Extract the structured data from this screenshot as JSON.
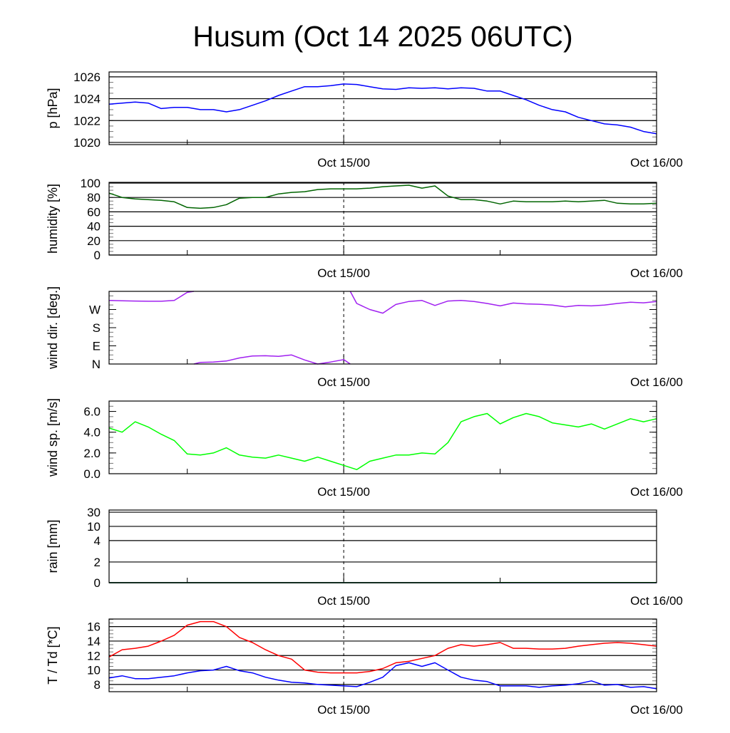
{
  "chart_data": {
    "type": "line",
    "title": "Husum (Oct 14 2025 06UTC)",
    "x": {
      "unit": "hours since Oct 14 06UTC",
      "range": [
        0,
        42
      ],
      "tick_labels": [
        {
          "hour": 18,
          "label": "Oct 15/00"
        },
        {
          "hour": 42,
          "label": "Oct 16/00"
        }
      ],
      "minor_ticks": [
        6,
        30
      ],
      "dashed_marker_hour": 18
    },
    "panels": [
      {
        "id": "pressure",
        "ylabel": "p [hPa]",
        "ylim": [
          1019.8,
          1026.45
        ],
        "yticks": [
          {
            "v": 1020,
            "label": "1020"
          },
          {
            "v": 1022,
            "label": "1022"
          },
          {
            "v": 1024,
            "label": "1024"
          },
          {
            "v": 1026,
            "label": "1026"
          }
        ],
        "grid": true,
        "series": [
          {
            "name": "pressure",
            "color": "#0000ff",
            "values": [
              1023.5,
              1023.6,
              1023.7,
              1023.6,
              1023.1,
              1023.2,
              1023.2,
              1023.0,
              1023.0,
              1022.8,
              1023.0,
              1023.4,
              1023.8,
              1024.3,
              1024.7,
              1025.1,
              1025.1,
              1025.2,
              1025.35,
              1025.3,
              1025.1,
              1024.9,
              1024.85,
              1025.0,
              1024.95,
              1025.0,
              1024.9,
              1025.0,
              1024.95,
              1024.7,
              1024.7,
              1024.3,
              1023.9,
              1023.4,
              1023.0,
              1022.8,
              1022.3,
              1022.0,
              1021.7,
              1021.6,
              1021.4,
              1021.0,
              1020.8
            ]
          }
        ]
      },
      {
        "id": "humidity",
        "ylabel": "humidity [%]",
        "ylim": [
          0,
          101
        ],
        "yticks": [
          {
            "v": 0,
            "label": "0"
          },
          {
            "v": 20,
            "label": "20"
          },
          {
            "v": 40,
            "label": "40"
          },
          {
            "v": 60,
            "label": "60"
          },
          {
            "v": 80,
            "label": "80"
          },
          {
            "v": 100,
            "label": "100"
          }
        ],
        "grid": true,
        "series": [
          {
            "name": "humidity",
            "color": "#006400",
            "values": [
              86,
              80,
              78,
              77,
              76,
              74,
              66,
              65,
              66,
              70,
              79,
              80,
              80,
              85,
              87,
              88,
              91,
              92,
              92,
              92,
              93,
              95,
              96,
              97,
              93,
              96,
              82,
              77,
              77,
              75,
              71,
              75,
              74,
              74,
              74,
              75,
              74,
              75,
              76,
              72,
              71,
              71,
              72
            ]
          }
        ]
      },
      {
        "id": "wind_dir",
        "ylabel": "wind dir. [deg.]",
        "ylim": [
          0,
          360
        ],
        "yticks": [
          {
            "v": 0,
            "label": "N"
          },
          {
            "v": 90,
            "label": "E"
          },
          {
            "v": 180,
            "label": "S"
          },
          {
            "v": 270,
            "label": "W"
          }
        ],
        "grid": false,
        "wrap": true,
        "series": [
          {
            "name": "wind direction",
            "color": "#a020f0",
            "values": [
              315,
              313,
              312,
              311,
              311,
              315,
              355,
              8,
              10,
              15,
              30,
              40,
              41,
              38,
              45,
              20,
              0,
              10,
              22,
              300,
              270,
              252,
              295,
              310,
              315,
              290,
              312,
              315,
              310,
              300,
              288,
              302,
              298,
              296,
              292,
              283,
              290,
              288,
              292,
              300,
              306,
              303,
              310
            ]
          }
        ]
      },
      {
        "id": "wind_speed",
        "ylabel": "wind sp. [m/s]",
        "ylim": [
          0,
          7.0
        ],
        "yticks": [
          {
            "v": 0,
            "label": "0.0"
          },
          {
            "v": 2,
            "label": "2.0"
          },
          {
            "v": 4,
            "label": "4.0"
          },
          {
            "v": 6,
            "label": "6.0"
          }
        ],
        "grid": false,
        "series": [
          {
            "name": "wind speed",
            "color": "#00ff00",
            "values": [
              4.4,
              4.0,
              5.0,
              4.5,
              3.8,
              3.2,
              1.9,
              1.8,
              2.0,
              2.5,
              1.8,
              1.6,
              1.5,
              1.8,
              1.5,
              1.2,
              1.6,
              1.2,
              0.8,
              0.4,
              1.2,
              1.5,
              1.8,
              1.8,
              2.0,
              1.9,
              3.0,
              5.0,
              5.5,
              5.8,
              4.8,
              5.4,
              5.8,
              5.5,
              4.9,
              4.7,
              4.5,
              4.8,
              4.3,
              4.8,
              5.3,
              5.0,
              5.3
            ]
          }
        ]
      },
      {
        "id": "rain",
        "ylabel": "rain [mm]",
        "ylim": [
          0,
          30
        ],
        "scale": "nonlinear",
        "yticks": [
          {
            "v": 0,
            "label": "0"
          },
          {
            "v": 2,
            "label": "2"
          },
          {
            "v": 4,
            "label": "4"
          },
          {
            "v": 10,
            "label": "10"
          },
          {
            "v": 30,
            "label": "30"
          }
        ],
        "grid": true,
        "series": [
          {
            "name": "rain",
            "color": "#00008b",
            "values": [
              0,
              0,
              0,
              0,
              0,
              0,
              0,
              0,
              0,
              0,
              0,
              0,
              0,
              0,
              0,
              0,
              0,
              0,
              0,
              0,
              0,
              0,
              0,
              0,
              0,
              0,
              0,
              0,
              0,
              0,
              0,
              0,
              0,
              0,
              0,
              0,
              0,
              0,
              0,
              0,
              0,
              0,
              0
            ]
          },
          {
            "name": "rain accumulated",
            "color": "#008000",
            "values": [
              0,
              0,
              0,
              0,
              0,
              0,
              0,
              0,
              0,
              0,
              0,
              0,
              0,
              0,
              0,
              0,
              0,
              0,
              0,
              0,
              0,
              0,
              0,
              0,
              0,
              0,
              0,
              0,
              0,
              0,
              0.02,
              0.02,
              0.02,
              0.02,
              0.02,
              0.02,
              0.02,
              0.02,
              0.02,
              0.02,
              0.02,
              0.02,
              0.02
            ]
          }
        ]
      },
      {
        "id": "temperature",
        "ylabel": "T / Td [*C]",
        "ylim": [
          7.0,
          17.05
        ],
        "yticks": [
          {
            "v": 8,
            "label": "8"
          },
          {
            "v": 10,
            "label": "10"
          },
          {
            "v": 12,
            "label": "12"
          },
          {
            "v": 14,
            "label": "14"
          },
          {
            "v": 16,
            "label": "16"
          }
        ],
        "grid": true,
        "series": [
          {
            "name": "T",
            "color": "#ff0000",
            "values": [
              11.8,
              12.8,
              13.0,
              13.3,
              14.0,
              14.8,
              16.2,
              16.7,
              16.7,
              16.0,
              14.5,
              13.8,
              12.8,
              12.0,
              11.5,
              10.0,
              9.7,
              9.6,
              9.6,
              9.6,
              9.8,
              10.2,
              11.0,
              11.2,
              11.6,
              12.0,
              13.0,
              13.5,
              13.3,
              13.5,
              13.8,
              13.0,
              13.0,
              12.9,
              12.9,
              13.0,
              13.3,
              13.5,
              13.7,
              13.8,
              13.7,
              13.5,
              13.3
            ]
          },
          {
            "name": "Td",
            "color": "#0000ff",
            "values": [
              8.9,
              9.2,
              8.8,
              8.8,
              9.0,
              9.2,
              9.6,
              9.9,
              10.0,
              10.5,
              9.9,
              9.6,
              9.0,
              8.6,
              8.3,
              8.2,
              8.0,
              7.9,
              7.8,
              7.7,
              8.3,
              9.0,
              10.6,
              11.0,
              10.5,
              11.0,
              10.0,
              9.0,
              8.6,
              8.4,
              7.8,
              7.8,
              7.8,
              7.6,
              7.8,
              7.9,
              8.1,
              8.5,
              7.9,
              8.0,
              7.6,
              7.7,
              7.4
            ]
          }
        ]
      }
    ]
  }
}
